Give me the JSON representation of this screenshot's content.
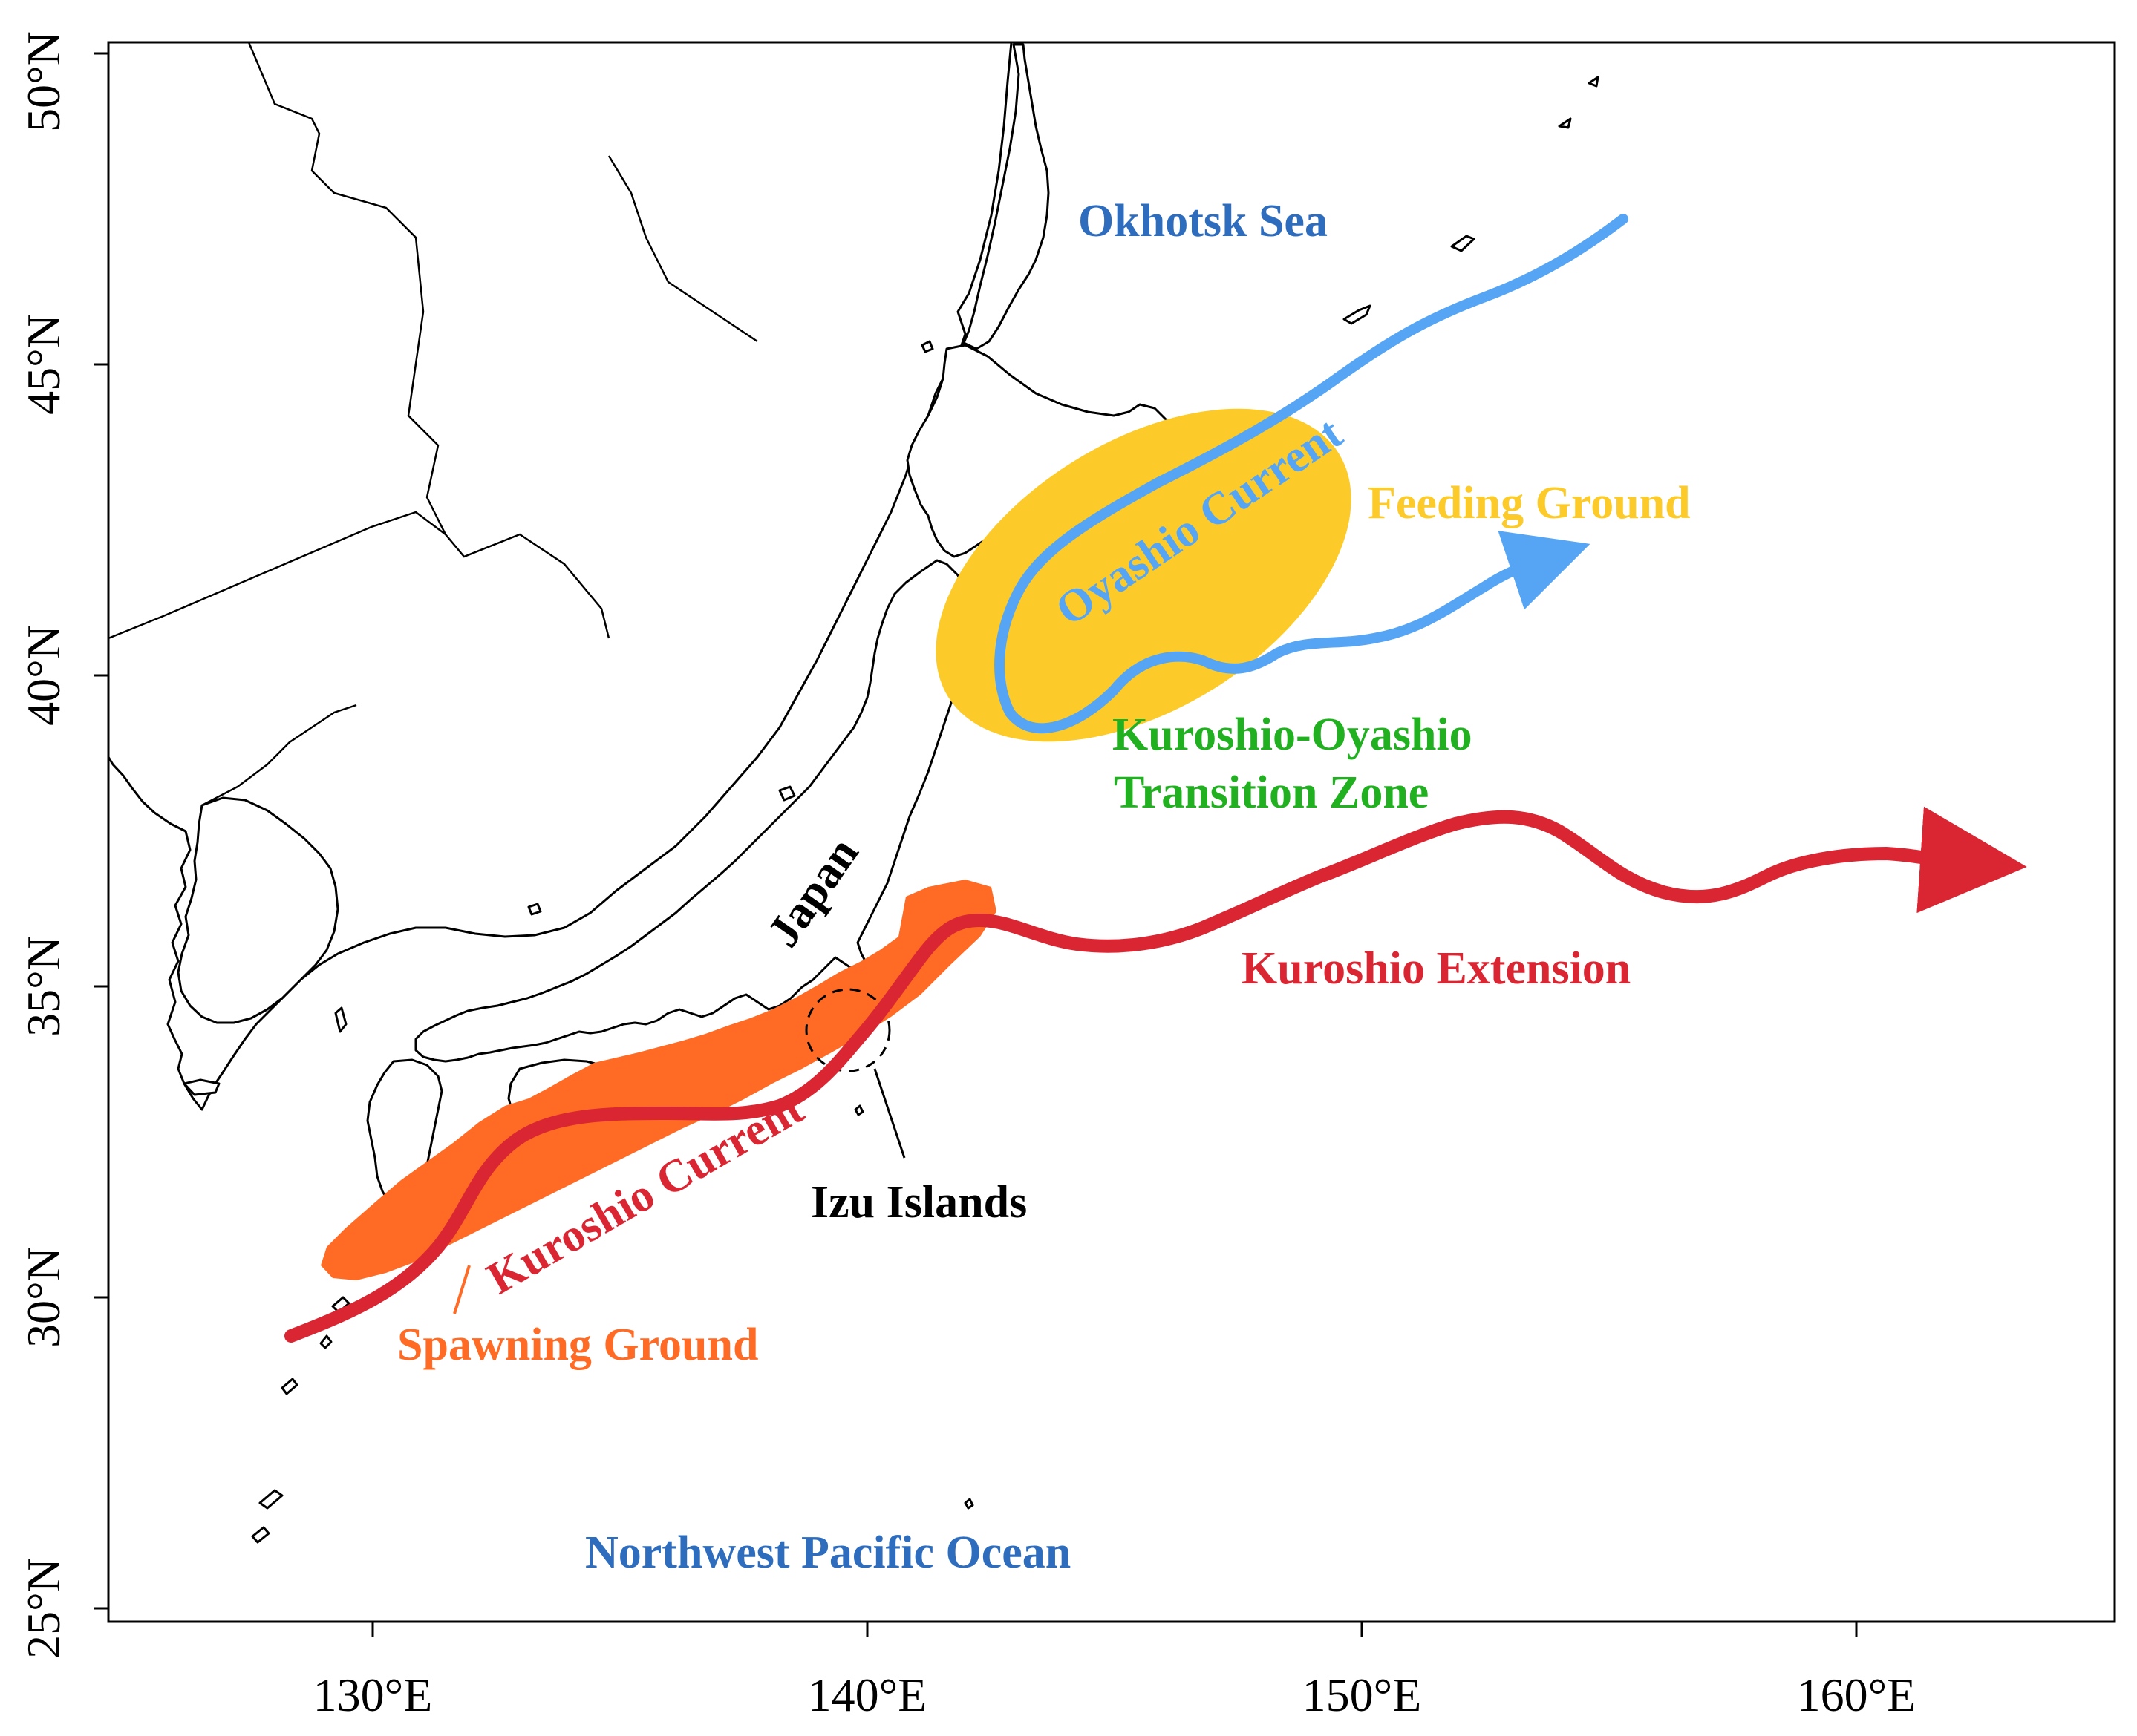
{
  "axes": {
    "x_ticks": [
      "130°E",
      "140°E",
      "150°E",
      "160°E"
    ],
    "y_ticks": [
      "25°N",
      "30°N",
      "35°N",
      "40°N",
      "45°N",
      "50°N"
    ]
  },
  "labels": {
    "okhotsk_sea": "Okhotsk Sea",
    "oyashio_current": "Oyashio Current",
    "feeding_ground": "Feeding Ground",
    "transition_zone_line1": "Kuroshio-Oyashio",
    "transition_zone_line2": "Transition Zone",
    "japan": "Japan",
    "kuroshio_extension": "Kuroshio Extension",
    "kuroshio_current": "Kuroshio Current",
    "izu_islands": "Izu Islands",
    "spawning_ground": "Spawning Ground",
    "northwest_pacific": "Northwest Pacific Ocean"
  },
  "colors": {
    "oyashio": "#56A5F5",
    "kuroshio": "#D92632",
    "feeding_ground": "#FCCB2A",
    "spawning_ground": "#FF6A24",
    "transition_zone_text": "#20B020",
    "sea_label_text": "#2E6DBE",
    "land": "#FFFFFF",
    "coastline": "#000000"
  }
}
